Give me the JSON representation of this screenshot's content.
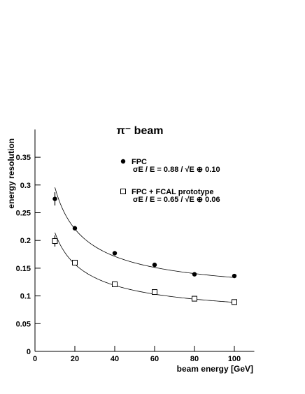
{
  "chart_data": {
    "type": "scatter",
    "title": "π⁻ beam",
    "x_label": "beam energy [GeV]",
    "y_label": "energy resolution",
    "xlim": [
      0,
      110
    ],
    "ylim": [
      0,
      0.4
    ],
    "xticks": [
      0,
      20,
      40,
      60,
      80,
      100
    ],
    "yticks": [
      0,
      0.05,
      0.1,
      0.15,
      0.2,
      0.25,
      0.3,
      0.35
    ],
    "series": [
      {
        "name": "FPC",
        "formula": "σE / E = 0.88 / √E ⊕ 0.10",
        "marker": "filled-circle",
        "color": "#000000",
        "x": [
          10,
          20,
          40,
          60,
          80,
          100
        ],
        "values": [
          0.275,
          0.222,
          0.177,
          0.156,
          0.139,
          0.136
        ],
        "errors": [
          0.012,
          0.003,
          0.002,
          0.002,
          0.002,
          0.002
        ],
        "fit": {
          "a": 0.88,
          "b": 0.1
        }
      },
      {
        "name": "FPC + FCAL prototype",
        "formula": "σE / E = 0.65 / √E ⊕ 0.06",
        "marker": "open-square",
        "color": "#000000",
        "x": [
          10,
          20,
          40,
          60,
          80,
          100
        ],
        "values": [
          0.199,
          0.16,
          0.121,
          0.107,
          0.095,
          0.089
        ],
        "errors": [
          0.01,
          0.003,
          0.002,
          0.002,
          0.002,
          0.002
        ],
        "fit": {
          "a": 0.65,
          "b": 0.06
        }
      }
    ]
  }
}
